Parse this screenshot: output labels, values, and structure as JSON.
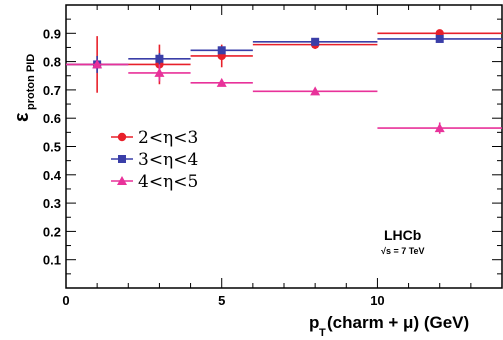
{
  "chart_data": {
    "type": "scatter",
    "title": "",
    "xlabel_main": "p",
    "xlabel_sub": "T",
    "xlabel_rest": "(charm + μ) (GeV)",
    "ylabel_main": "ε",
    "ylabel_sub": "proton PID",
    "xlim": [
      0,
      14
    ],
    "ylim": [
      0,
      1.0
    ],
    "x_ticks": [
      0,
      5,
      10
    ],
    "y_ticks": [
      0.1,
      0.2,
      0.3,
      0.4,
      0.5,
      0.6,
      0.7,
      0.8,
      0.9
    ],
    "grid": false,
    "legend_placement": "center-left",
    "experiment": "LHCb",
    "energy": "√s = 7 TeV",
    "series": [
      {
        "name": "2<η<3",
        "color": "#e8202a",
        "marker": "circle",
        "points": [
          {
            "x": 1,
            "xlo": 0,
            "xhi": 2,
            "y": 0.79,
            "yerr": 0.1
          },
          {
            "x": 3,
            "xlo": 2,
            "xhi": 4,
            "y": 0.79,
            "yerr": 0.07
          },
          {
            "x": 5,
            "xlo": 4,
            "xhi": 6,
            "y": 0.82,
            "yerr": 0.04
          },
          {
            "x": 8,
            "xlo": 6,
            "xhi": 10,
            "y": 0.86,
            "yerr": 0.015
          },
          {
            "x": 12,
            "xlo": 10,
            "xhi": 14,
            "y": 0.9,
            "yerr": 0.01
          }
        ]
      },
      {
        "name": "3<η<4",
        "color": "#3a3ea8",
        "marker": "square",
        "points": [
          {
            "x": 1,
            "xlo": 0,
            "xhi": 2,
            "y": 0.79,
            "yerr": 0.03
          },
          {
            "x": 3,
            "xlo": 2,
            "xhi": 4,
            "y": 0.81,
            "yerr": 0.02
          },
          {
            "x": 5,
            "xlo": 4,
            "xhi": 6,
            "y": 0.84,
            "yerr": 0.01
          },
          {
            "x": 8,
            "xlo": 6,
            "xhi": 10,
            "y": 0.87,
            "yerr": 0.005
          },
          {
            "x": 12,
            "xlo": 10,
            "xhi": 14,
            "y": 0.88,
            "yerr": 0.005
          }
        ]
      },
      {
        "name": "4<η<5",
        "color": "#e8329a",
        "marker": "triangle",
        "points": [
          {
            "x": 1,
            "xlo": 0,
            "xhi": 2,
            "y": 0.79,
            "yerr": 0.01
          },
          {
            "x": 3,
            "xlo": 2,
            "xhi": 4,
            "y": 0.76,
            "yerr": 0.03
          },
          {
            "x": 5,
            "xlo": 4,
            "xhi": 6,
            "y": 0.725,
            "yerr": 0.01
          },
          {
            "x": 8,
            "xlo": 6,
            "xhi": 10,
            "y": 0.695,
            "yerr": 0.005
          },
          {
            "x": 12,
            "xlo": 10,
            "xhi": 14,
            "y": 0.565,
            "yerr": 0.02
          }
        ]
      }
    ]
  }
}
